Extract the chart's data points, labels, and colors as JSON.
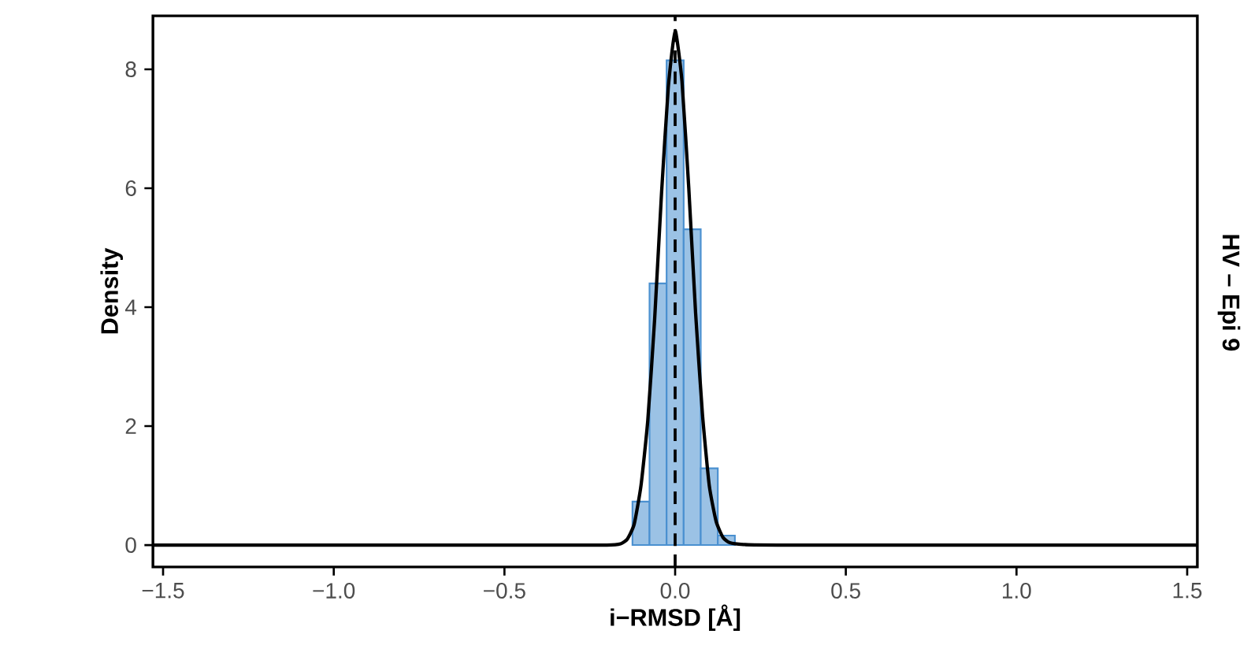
{
  "chart_data": {
    "type": "histogram",
    "xlabel": "i−RMSD [Å]",
    "ylabel": "Density",
    "annotations": [
      "HV – Epi 9"
    ],
    "series": [
      {
        "color": "#4a90d0",
        "bins": [
          -0.125,
          -0.075,
          -0.025,
          0.025,
          0.075,
          0.125,
          0.175
        ],
        "values": [
          0.73,
          4.4,
          8.15,
          5.31,
          1.29,
          0.16
        ]
      },
      {
        "type": "line",
        "color": "#000000",
        "x": [
          -1.53,
          -0.5,
          -0.2,
          -0.16,
          -0.14,
          -0.12,
          -0.1,
          -0.08,
          -0.06,
          -0.04,
          -0.02,
          0,
          0.02,
          0.04,
          0.06,
          0.08,
          0.1,
          0.12,
          0.14,
          0.16,
          0.2,
          0.3,
          1.53
        ],
        "values": [
          0,
          0,
          0,
          0.02,
          0.1,
          0.35,
          1.0,
          2.1,
          3.8,
          5.9,
          7.7,
          8.65,
          7.8,
          6.0,
          3.9,
          2.2,
          1.0,
          0.4,
          0.13,
          0.04,
          0.01,
          0,
          0
        ]
      }
    ],
    "ref_lines": [
      {
        "axis": "x",
        "value": 0,
        "color": "#000000",
        "line_style": "dashed"
      }
    ],
    "xlim": [
      -1.53,
      1.53
    ],
    "ylim": [
      -0.37,
      8.9
    ],
    "xticks": [
      {
        "value": -1.5,
        "label": "−1.5"
      },
      {
        "value": -1.0,
        "label": "−1.0"
      },
      {
        "value": -0.5,
        "label": "−0.5"
      },
      {
        "value": 0.0,
        "label": "0.0"
      },
      {
        "value": 0.5,
        "label": "0.5"
      },
      {
        "value": 1.0,
        "label": "1.0"
      },
      {
        "value": 1.5,
        "label": "1.5"
      }
    ],
    "yticks": [
      0,
      2,
      4,
      6,
      8
    ],
    "grid": false
  }
}
